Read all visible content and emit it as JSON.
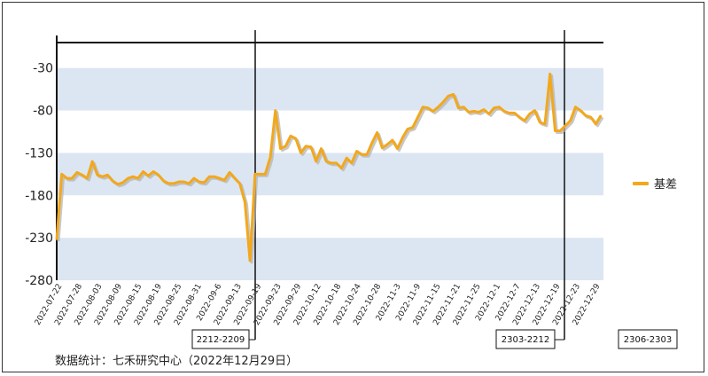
{
  "chart_data": {
    "type": "line",
    "series": [
      {
        "name": "基差",
        "color": "#f2a81d",
        "y": [
          -232,
          -155,
          -160,
          -160,
          -153,
          -156,
          -160,
          -140,
          -156,
          -158,
          -156,
          -163,
          -167,
          -165,
          -160,
          -158,
          -160,
          -152,
          -157,
          -152,
          -156,
          -163,
          -166,
          -166,
          -164,
          -164,
          -166,
          -160,
          -164,
          -165,
          -158,
          -158,
          -160,
          -162,
          -153,
          -160,
          -166,
          -188,
          -257,
          -155,
          -155,
          -155,
          -135,
          -80,
          -125,
          -122,
          -110,
          -113,
          -130,
          -122,
          -123,
          -140,
          -125,
          -140,
          -142,
          -142,
          -148,
          -136,
          -142,
          -128,
          -132,
          -132,
          -118,
          -106,
          -124,
          -120,
          -115,
          -125,
          -112,
          -102,
          -100,
          -88,
          -76,
          -77,
          -81,
          -76,
          -70,
          -63,
          -61,
          -77,
          -76,
          -82,
          -81,
          -82,
          -79,
          -84,
          -77,
          -76,
          -81,
          -83,
          -83,
          -88,
          -92,
          -84,
          -80,
          -94,
          -96,
          -37,
          -104,
          -104,
          -98,
          -92,
          -76,
          -80,
          -86,
          -88,
          -96,
          -86
        ]
      }
    ],
    "x_tick_labels": [
      "2022-07-22",
      "2022-07-28",
      "2022-08-03",
      "2022-08-09",
      "2022-08-15",
      "2022-08-19",
      "2022-08-25",
      "2022-08-31",
      "2022-09-6",
      "2022-09-13",
      "2022-09-19",
      "2022-09-23",
      "2022-09-29",
      "2022-10-12",
      "2022-10-18",
      "2022-10-24",
      "2022-10-28",
      "2022-11-3",
      "2022-11-9",
      "2022-11-15",
      "2022-11-21",
      "2022-11-25",
      "2022-12-1",
      "2022-12-7",
      "2022-12-13",
      "2022-12-19",
      "2022-12-23",
      "2022-12-29"
    ],
    "y_ticks": [
      -30,
      -80,
      -130,
      -180,
      -230,
      -280
    ],
    "ylim": [
      -280,
      0
    ],
    "contract_markers": [
      "2212-2209",
      "2303-2212",
      "2306-2303"
    ],
    "legend_position": "right",
    "band_color": "#dce6f2"
  },
  "source_text": "数据统计：七禾研究中心（2022年12月29日）"
}
